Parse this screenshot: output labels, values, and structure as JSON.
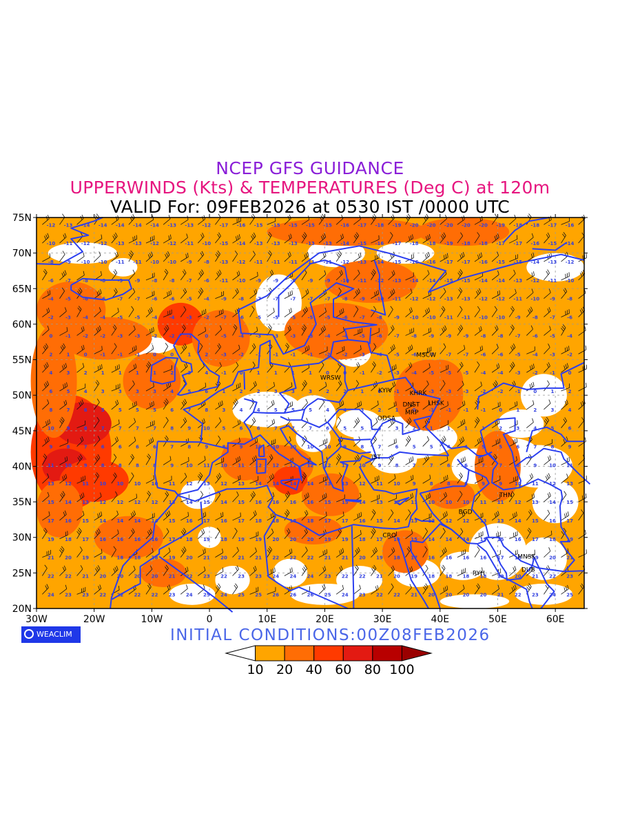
{
  "title": {
    "line1": "NCEP GFS GUIDANCE",
    "line2": "UPPERWINDS (Kts) & TEMPERATURES (Deg C) at 120m",
    "line3": "VALID For: 09FEB2026 at 0530 IST /0000 UTC"
  },
  "initial_conditions": "INITIAL  CONDITIONS:00Z08FEB2026",
  "logo": {
    "text": "WEACLIM",
    "icon": "weaclim-logo-icon"
  },
  "map": {
    "lat_labels": [
      "75N",
      "70N",
      "65N",
      "60N",
      "55N",
      "50N",
      "45N",
      "40N",
      "35N",
      "30N",
      "25N",
      "20N"
    ],
    "lat_values": [
      75,
      70,
      65,
      60,
      55,
      50,
      45,
      40,
      35,
      30,
      25,
      20
    ],
    "lon_labels": [
      "30W",
      "20W",
      "10W",
      "0",
      "10E",
      "20E",
      "30E",
      "40E",
      "50E",
      "60E"
    ],
    "lon_values": [
      -30,
      -20,
      -10,
      0,
      10,
      20,
      30,
      40,
      50,
      60
    ],
    "extent": {
      "lon_min": -30,
      "lon_max": 65,
      "lat_min": 20,
      "lat_max": 75
    },
    "cities": [
      {
        "name": "MSCW",
        "lon": 37.6,
        "lat": 55.4
      },
      {
        "name": "WRSW",
        "lon": 21.0,
        "lat": 52.2
      },
      {
        "name": "KYIV",
        "lon": 30.5,
        "lat": 50.4
      },
      {
        "name": "KHRK",
        "lon": 36.2,
        "lat": 50.0
      },
      {
        "name": "LHSK",
        "lon": 39.3,
        "lat": 48.6
      },
      {
        "name": "DNST",
        "lon": 35.0,
        "lat": 48.4
      },
      {
        "name": "MRP",
        "lon": 35.1,
        "lat": 47.3
      },
      {
        "name": "ODSA",
        "lon": 30.7,
        "lat": 46.5
      },
      {
        "name": "IST",
        "lon": 28.9,
        "lat": 41.0
      },
      {
        "name": "THN",
        "lon": 51.4,
        "lat": 35.7
      },
      {
        "name": "BGD",
        "lon": 44.4,
        "lat": 33.3
      },
      {
        "name": "CRO",
        "lon": 31.2,
        "lat": 30.0
      },
      {
        "name": "MNSK",
        "lon": 55.0,
        "lat": 27.0
      },
      {
        "name": "RYH",
        "lon": 46.7,
        "lat": 24.7
      },
      {
        "name": "DUB",
        "lon": 55.3,
        "lat": 25.2
      }
    ],
    "colors": {
      "frame": "#000000",
      "borders": "#2b3ff0",
      "grid": "#9a9a9a",
      "temp_text": "#3140e0"
    }
  },
  "legend": {
    "labels": [
      "10",
      "20",
      "40",
      "60",
      "80",
      "100"
    ],
    "bins": [
      10,
      20,
      40,
      60,
      80,
      100
    ],
    "colors": [
      "#ffffff",
      "#ffa500",
      "#ff6d05",
      "#ff3a00",
      "#e31a12",
      "#b80000",
      "#9a0000"
    ]
  }
}
